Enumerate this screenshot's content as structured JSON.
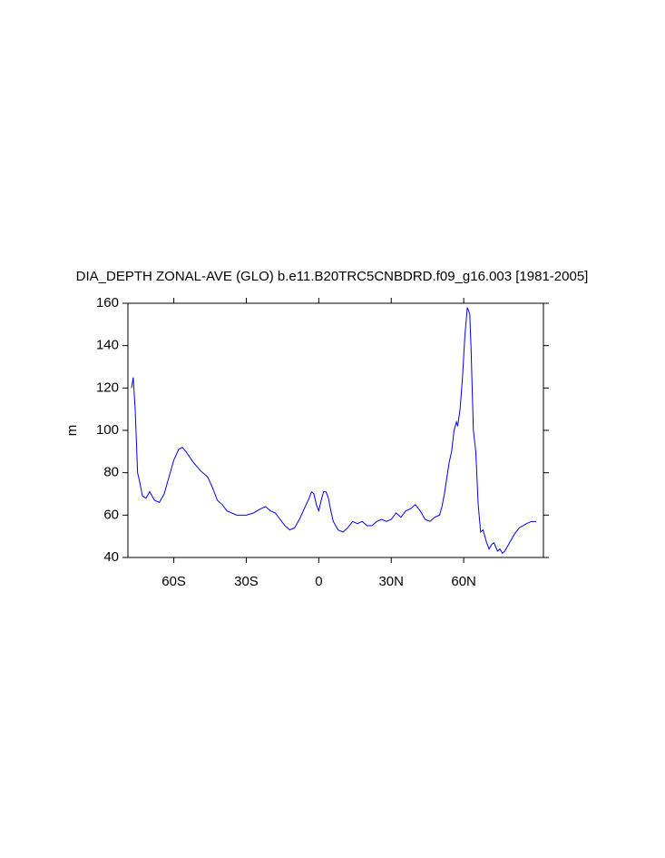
{
  "chart_data": {
    "type": "line",
    "title": "DIA_DEPTH ZONAL-AVE (GLO) b.e11.B20TRC5CNBDRD.f09_g16.003 [1981-2005]",
    "y_label": "m",
    "xlim": [
      -79,
      93
    ],
    "xticks": [
      {
        "value": -60,
        "label": "60S"
      },
      {
        "value": -30,
        "label": "30S"
      },
      0,
      {
        "value": 30,
        "label": "30N"
      },
      {
        "value": 60,
        "label": "60N"
      }
    ],
    "ylim": [
      40,
      160
    ],
    "yticks": [
      40,
      60,
      80,
      100,
      120,
      140,
      160
    ],
    "series": [
      {
        "color": "#0000ff",
        "x": [
          -77.5,
          -76.8,
          -76,
          -75,
          -74,
          -73,
          -71.5,
          -70,
          -68,
          -66,
          -64,
          -62,
          -60,
          -58,
          -56.5,
          -55,
          -52,
          -49,
          -46,
          -44,
          -42,
          -40,
          -38,
          -36,
          -34,
          -30,
          -27,
          -24,
          -22,
          -20,
          -18,
          -16,
          -14,
          -12,
          -10,
          -8,
          -6,
          -4,
          -3,
          -2,
          -1,
          0,
          1,
          2,
          3,
          4,
          5,
          6,
          8,
          10,
          12,
          14,
          16,
          18,
          20,
          22,
          24,
          26,
          28,
          30,
          32,
          34,
          36,
          38,
          40,
          42,
          44,
          46,
          48,
          50,
          51,
          52,
          54,
          55,
          56,
          57,
          57.5,
          58.5,
          59.5,
          60.5,
          61.5,
          62.5,
          63,
          64,
          65,
          66,
          67,
          68,
          69.5,
          70.5,
          71.5,
          72.5,
          74,
          75,
          76,
          77,
          79,
          81,
          83,
          86,
          88,
          90
        ],
        "values": [
          120,
          125,
          110,
          80,
          75,
          69,
          68,
          71,
          67,
          66,
          70,
          78,
          86,
          91,
          92,
          90,
          85,
          81,
          78,
          73,
          67,
          65,
          62,
          61,
          60,
          60,
          61,
          63,
          64,
          62,
          61,
          58,
          55,
          53,
          54,
          58,
          63,
          68,
          71,
          70,
          65,
          62,
          67,
          71,
          71,
          68,
          62,
          57,
          53,
          52,
          54,
          57,
          56,
          57,
          55,
          55,
          57,
          58,
          57,
          58,
          61,
          59,
          62,
          63,
          65,
          62,
          58,
          57,
          59,
          60,
          64,
          70,
          85,
          90,
          100,
          104,
          102,
          110,
          125,
          145,
          158,
          155,
          140,
          100,
          90,
          65,
          52,
          53,
          47,
          44,
          46,
          47,
          43,
          44,
          42,
          43,
          47,
          51,
          54,
          56,
          57,
          57
        ]
      }
    ]
  }
}
